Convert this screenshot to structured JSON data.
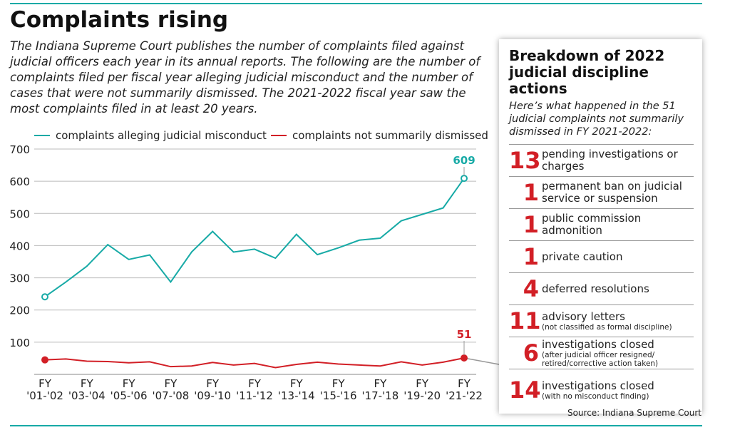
{
  "chart_data": {
    "type": "line",
    "title": "Complaints rising",
    "subtitle": "The Indiana Supreme Court publishes the number of complaints filed against judicial officers each year in its annual reports. The following are the number of complaints filed per fiscal year alleging judicial misconduct and the number of cases that were not summarily dismissed. The 2021-2022 fiscal year saw the most complaints filed in at least 20 years.",
    "source": "Source: Indiana Supreme Court",
    "categories": [
      "FY '01-'02",
      null,
      "FY '03-'04",
      null,
      "FY '05-'06",
      null,
      "FY '07-'08",
      null,
      "FY '09-'10",
      null,
      "FY '11-'12",
      null,
      "FY '13-'14",
      null,
      "FY '15-'16",
      null,
      "FY '17-'18",
      null,
      "FY '19-'20",
      null,
      "FY '21-'22"
    ],
    "series": [
      {
        "name": "complaints alleging judicial misconduct",
        "color": "#17aaa6",
        "values": [
          241,
          287,
          336,
          403,
          357,
          371,
          287,
          380,
          444,
          380,
          389,
          361,
          435,
          372,
          393,
          417,
          423,
          477,
          497,
          517,
          609
        ]
      },
      {
        "name": "complaints not summarily dismissed",
        "color": "#d21f26",
        "values": [
          45,
          48,
          41,
          40,
          36,
          39,
          24,
          26,
          37,
          29,
          34,
          21,
          31,
          38,
          32,
          29,
          26,
          39,
          29,
          38,
          51
        ]
      }
    ],
    "ylim": [
      0,
      700
    ],
    "yticks": [
      100,
      200,
      300,
      400,
      500,
      600,
      700
    ],
    "grid": true
  },
  "sidebar": {
    "title": "Breakdown of 2022 judicial discipline actions",
    "subtitle": "Here’s what happened in the 51 judicial complaints not summarily dismissed in FY 2021-2022:",
    "items": [
      {
        "number": 13,
        "label": "pending investigations or charges"
      },
      {
        "number": 1,
        "label": "permanent ban on judicial service or suspension"
      },
      {
        "number": 1,
        "label": "public commission admonition"
      },
      {
        "number": 1,
        "label": "private caution"
      },
      {
        "number": 4,
        "label": "deferred resolutions"
      },
      {
        "number": 11,
        "label": "advisory letters",
        "note": "(not classified as formal discipline)"
      },
      {
        "number": 6,
        "label": "investigations closed",
        "note": "(after judicial officer resigned/ retired/corrective action taken)"
      },
      {
        "number": 14,
        "label": "investigations closed",
        "note": "(with no misconduct finding)"
      }
    ]
  }
}
